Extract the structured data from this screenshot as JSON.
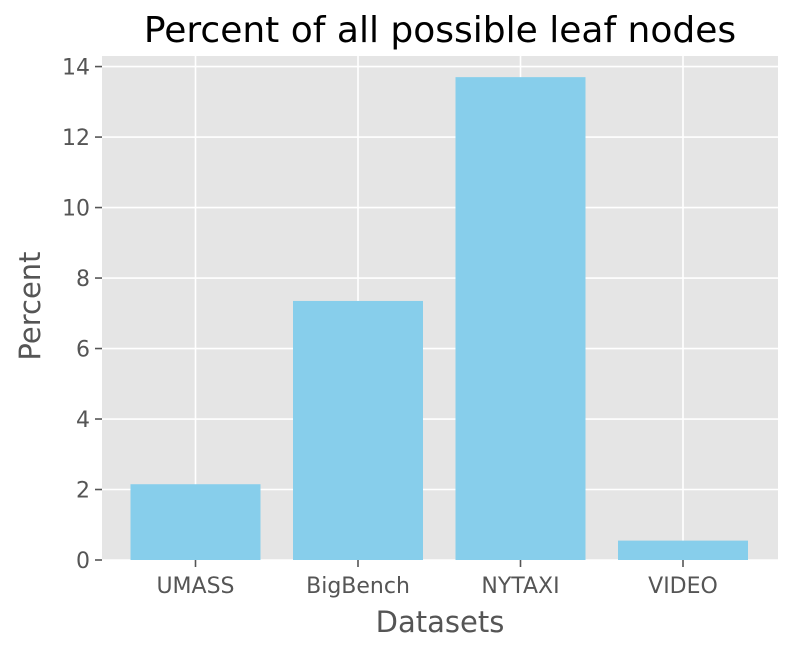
{
  "chart_data": {
    "type": "bar",
    "title": "Percent of all possible leaf nodes",
    "xlabel": "Datasets",
    "ylabel": "Percent",
    "categories": [
      "UMASS",
      "BigBench",
      "NYTAXI",
      "VIDEO"
    ],
    "values": [
      2.15,
      7.35,
      13.7,
      0.55
    ],
    "ylim": [
      0,
      14.3
    ],
    "yticks": [
      0,
      2,
      4,
      6,
      8,
      10,
      12,
      14
    ],
    "grid": true,
    "legend": "none",
    "colors": {
      "bar": "#87ceeb",
      "background": "#e5e5e5",
      "grid": "#ffffff",
      "tick": "#555555",
      "text": "#555555",
      "title": "#000000"
    }
  }
}
